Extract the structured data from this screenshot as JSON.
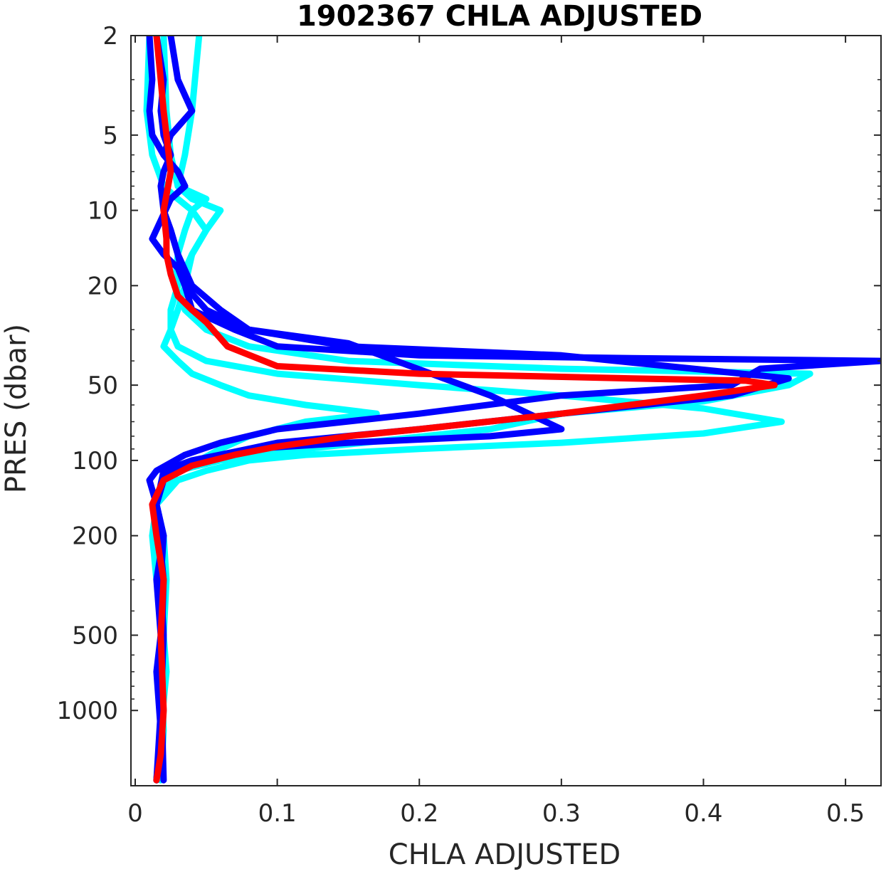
{
  "chart_data": {
    "type": "line",
    "title": "1902367  CHLA ADJUSTED",
    "xlabel": "CHLA ADJUSTED",
    "ylabel": "PRES (dbar)",
    "xlim": [
      -0.003,
      0.525
    ],
    "ylim": [
      2,
      2000
    ],
    "y_scale": "log",
    "y_reversed": true,
    "grid": false,
    "x_ticks": [
      "0",
      "0.1",
      "0.2",
      "0.3",
      "0.4",
      "0.5"
    ],
    "y_ticks": [
      "2",
      "5",
      "10",
      "20",
      "50",
      "100",
      "200",
      "500",
      "1000"
    ],
    "x_tick_values": [
      0,
      0.1,
      0.2,
      0.3,
      0.4,
      0.5
    ],
    "y_tick_values": [
      2,
      5,
      10,
      20,
      50,
      100,
      200,
      500,
      1000
    ],
    "series": [
      {
        "color": "#00FFFF",
        "x": [
          0.01,
          0.008,
          0.012,
          0.02,
          0.03,
          0.04,
          0.05,
          0.04,
          0.03,
          0.025,
          0.025,
          0.02,
          0.03,
          0.04,
          0.06,
          0.08,
          0.12,
          0.17,
          0.12,
          0.08,
          0.06,
          0.045,
          0.03,
          0.015,
          0.012,
          0.015,
          0.018,
          0.02,
          0.018,
          0.02,
          0.018,
          0.015
        ],
        "y": [
          2,
          4,
          6,
          8,
          9,
          10,
          12,
          15,
          20,
          25,
          30,
          35,
          40,
          45,
          50,
          55,
          60,
          65,
          70,
          80,
          90,
          100,
          110,
          150,
          200,
          300,
          400,
          500,
          700,
          1000,
          1400,
          1900
        ]
      },
      {
        "color": "#00FFFF",
        "x": [
          0.045,
          0.04,
          0.035,
          0.03,
          0.04,
          0.06,
          0.05,
          0.04,
          0.035,
          0.03,
          0.025,
          0.03,
          0.05,
          0.1,
          0.2,
          0.3,
          0.4,
          0.455,
          0.4,
          0.3,
          0.2,
          0.12,
          0.08,
          0.05,
          0.03,
          0.015,
          0.02,
          0.022,
          0.02,
          0.022,
          0.018,
          0.015
        ],
        "y": [
          2,
          4,
          6,
          8,
          9,
          10,
          12,
          15,
          20,
          25,
          30,
          35,
          40,
          45,
          50,
          55,
          62,
          70,
          78,
          85,
          90,
          95,
          100,
          110,
          120,
          150,
          200,
          300,
          500,
          700,
          1200,
          1900
        ]
      },
      {
        "color": "#00FFFF",
        "x": [
          0.02,
          0.022,
          0.025,
          0.03,
          0.05,
          0.04,
          0.035,
          0.03,
          0.028,
          0.035,
          0.05,
          0.08,
          0.15,
          0.3,
          0.475,
          0.46,
          0.4,
          0.3,
          0.25,
          0.12,
          0.06,
          0.03,
          0.015,
          0.02,
          0.018,
          0.02,
          0.018
        ],
        "y": [
          2,
          4,
          6,
          8,
          9,
          10,
          12,
          15,
          20,
          25,
          30,
          35,
          40,
          43,
          45,
          50,
          58,
          65,
          75,
          90,
          100,
          110,
          150,
          300,
          600,
          1200,
          1900
        ]
      },
      {
        "color": "#0000FF",
        "x": [
          0.01,
          0.012,
          0.01,
          0.012,
          0.02,
          0.03,
          0.035,
          0.025,
          0.012,
          0.02,
          0.03,
          0.035,
          0.04,
          0.07,
          0.1,
          0.2,
          0.35,
          0.525,
          0.44,
          0.42,
          0.3,
          0.2,
          0.1,
          0.06,
          0.035,
          0.015,
          0.01,
          0.015,
          0.02,
          0.015,
          0.018,
          0.015,
          0.018,
          0.015
        ],
        "y": [
          2,
          3,
          4,
          5,
          6,
          7,
          8,
          9,
          13,
          15,
          17,
          20,
          25,
          30,
          35,
          38,
          39,
          40,
          43,
          50,
          55,
          65,
          75,
          85,
          95,
          110,
          120,
          150,
          200,
          300,
          500,
          700,
          1200,
          1900
        ]
      },
      {
        "color": "#0000FF",
        "x": [
          0.025,
          0.03,
          0.04,
          0.025,
          0.02,
          0.03,
          0.035,
          0.025,
          0.02,
          0.025,
          0.03,
          0.04,
          0.06,
          0.08,
          0.15,
          0.3,
          0.46,
          0.42,
          0.3,
          0.2,
          0.1,
          0.06,
          0.03,
          0.02,
          0.015,
          0.02,
          0.018,
          0.02,
          0.018,
          0.015
        ],
        "y": [
          2,
          3,
          4,
          5,
          6,
          7,
          8,
          9,
          10,
          12,
          15,
          20,
          25,
          30,
          35,
          38,
          47,
          55,
          65,
          75,
          85,
          95,
          105,
          120,
          150,
          200,
          300,
          500,
          1000,
          1900
        ]
      },
      {
        "color": "#0000FF",
        "x": [
          0.015,
          0.02,
          0.018,
          0.02,
          0.025,
          0.02,
          0.018,
          0.02,
          0.025,
          0.03,
          0.035,
          0.05,
          0.08,
          0.15,
          0.25,
          0.3,
          0.25,
          0.15,
          0.08,
          0.04,
          0.02,
          0.015,
          0.02,
          0.018,
          0.02
        ],
        "y": [
          2,
          3,
          4,
          5,
          6,
          7,
          8,
          10,
          12,
          15,
          20,
          25,
          30,
          34,
          55,
          75,
          80,
          85,
          90,
          100,
          110,
          150,
          300,
          700,
          1900
        ]
      },
      {
        "color": "#FF0000",
        "x": [
          0.015,
          0.018,
          0.02,
          0.022,
          0.025,
          0.02,
          0.022,
          0.022,
          0.025,
          0.03,
          0.04,
          0.05,
          0.065,
          0.1,
          0.2,
          0.35,
          0.43,
          0.45,
          0.4,
          0.3,
          0.2,
          0.15,
          0.1,
          0.07,
          0.04,
          0.02,
          0.012,
          0.015,
          0.02,
          0.018,
          0.02,
          0.018,
          0.015
        ],
        "y": [
          2,
          3,
          4,
          5,
          7,
          10,
          13,
          15,
          18,
          22,
          25,
          28,
          35,
          42,
          45,
          47,
          48,
          50,
          55,
          65,
          75,
          80,
          88,
          95,
          105,
          120,
          150,
          200,
          300,
          500,
          1000,
          1500,
          1900
        ]
      }
    ]
  }
}
